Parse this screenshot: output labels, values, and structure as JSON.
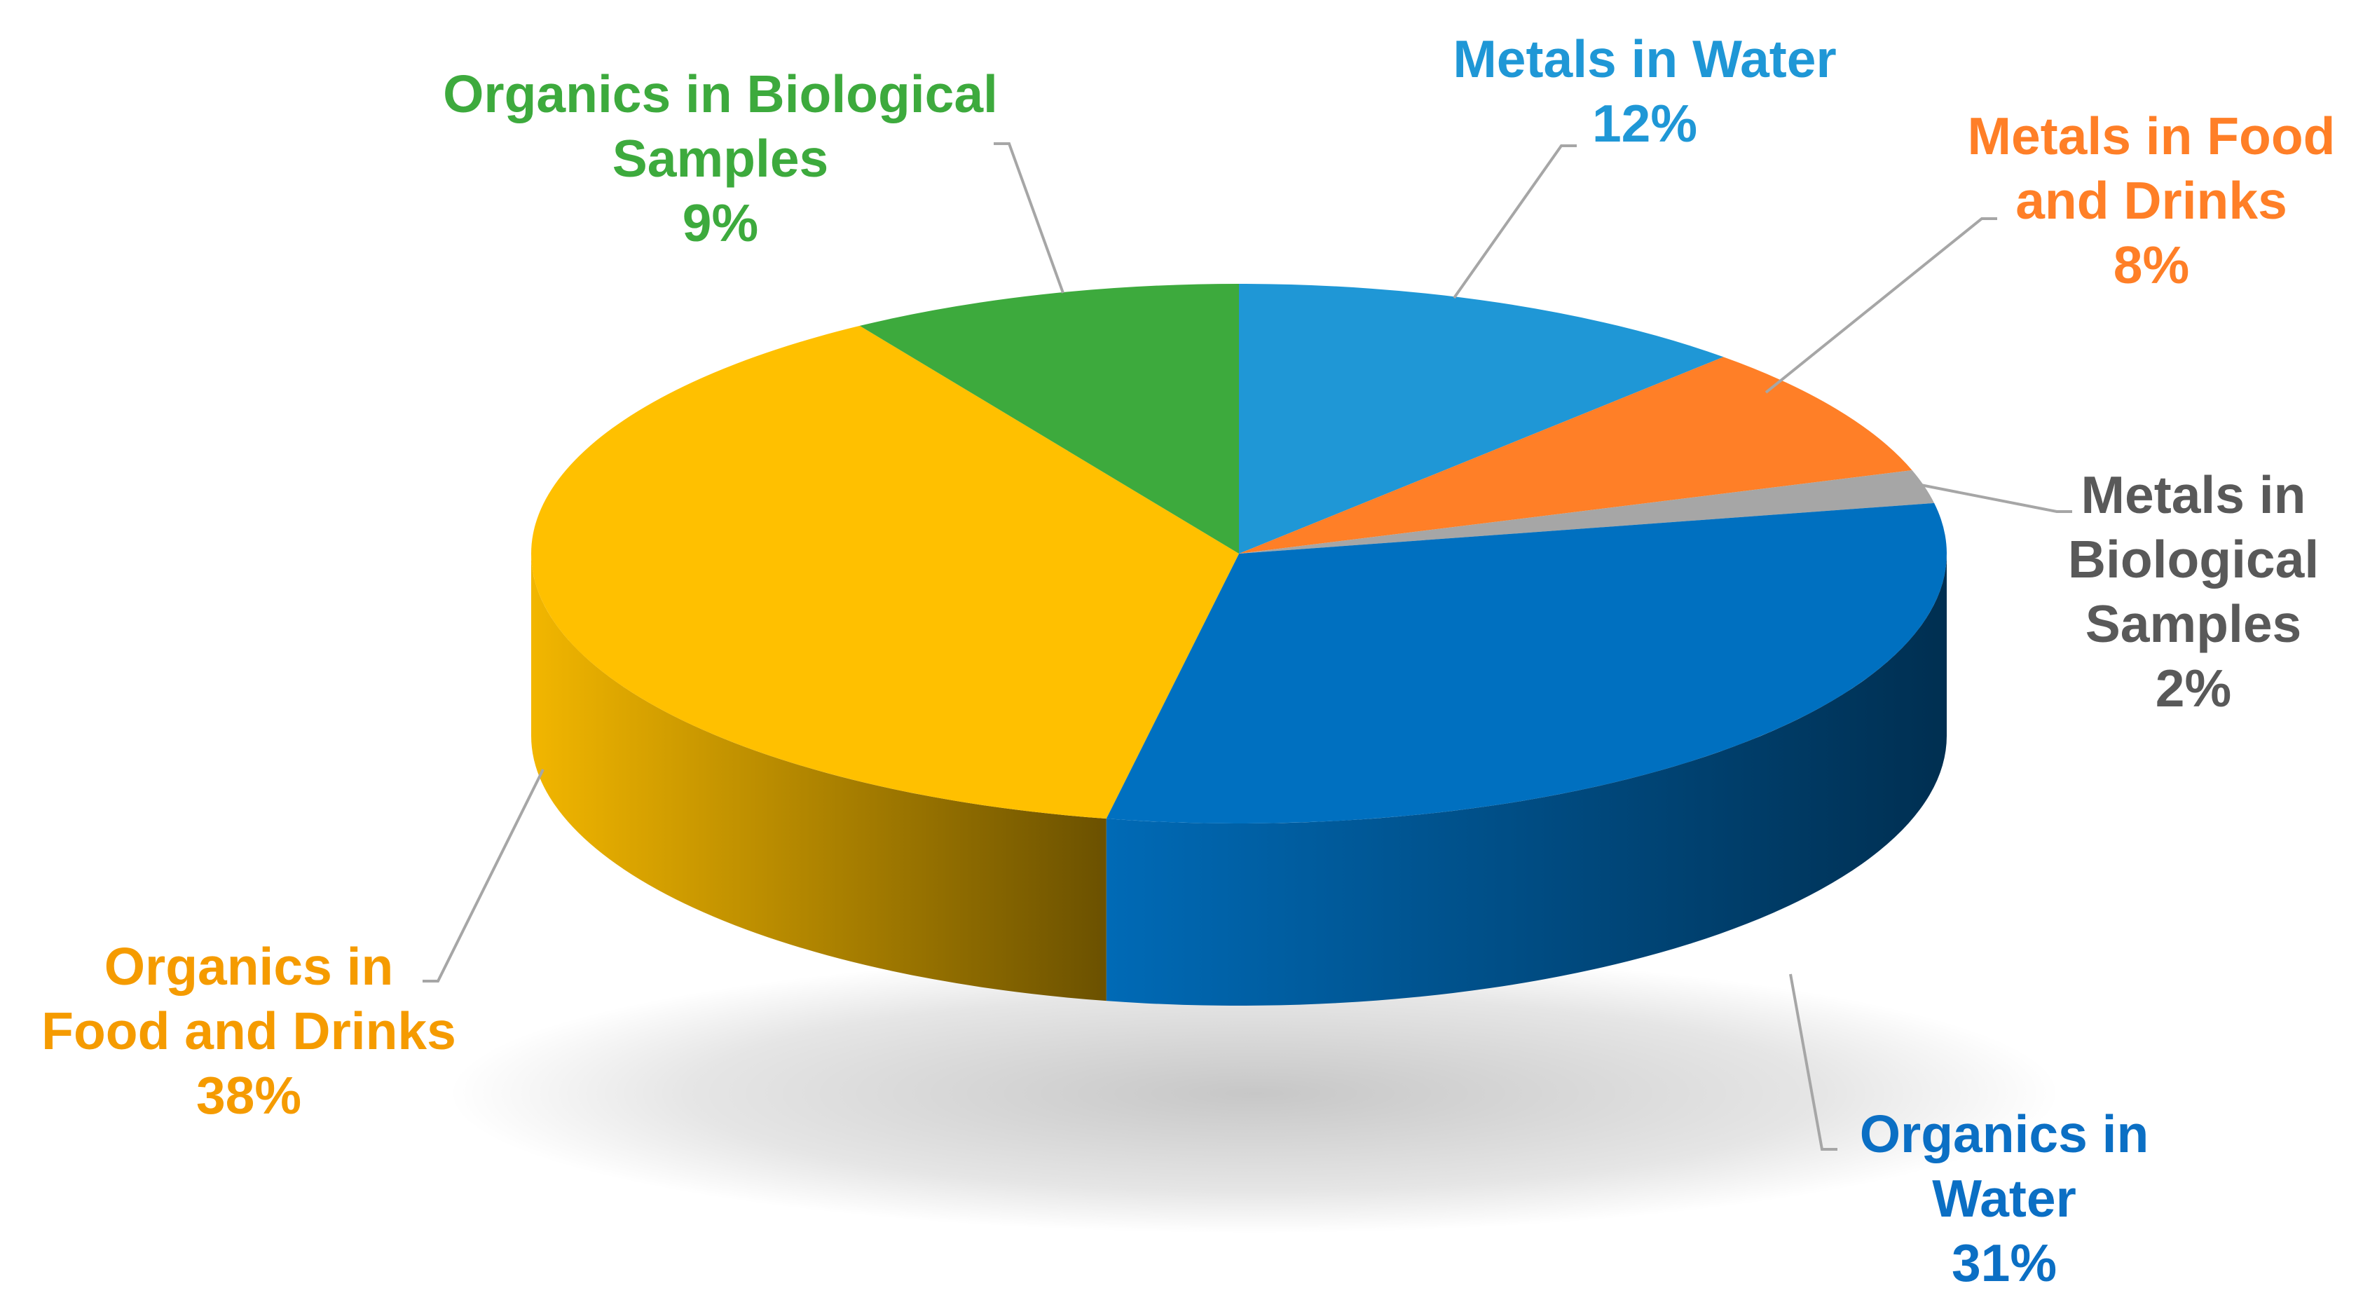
{
  "chart_data": {
    "type": "pie",
    "style": "3d-pie",
    "title": "",
    "slices": [
      {
        "label_lines": [
          "Metals in Water"
        ],
        "value": 12,
        "value_text": "12%",
        "color": "#1F97D6"
      },
      {
        "label_lines": [
          "Metals in Food",
          "and Drinks"
        ],
        "value": 8,
        "value_text": "8%",
        "color": "#FF7F27"
      },
      {
        "label_lines": [
          "Metals in",
          "Biological",
          "Samples"
        ],
        "value": 2,
        "value_text": "2%",
        "color": "#A6A6A6",
        "label_color": "#595959"
      },
      {
        "label_lines": [
          "Organics in",
          "Water"
        ],
        "value": 31,
        "value_text": "31%",
        "color": "#0070C0",
        "label_color": "#0B6FC4"
      },
      {
        "label_lines": [
          "Organics in",
          "Food and Drinks"
        ],
        "value": 38,
        "value_text": "38%",
        "color": "#FFC000",
        "label_color": "#F59B00"
      },
      {
        "label_lines": [
          "Organics in Biological",
          "Samples"
        ],
        "value": 9,
        "value_text": "9%",
        "color": "#3DAA3D",
        "label_color": "#3DAA3D"
      }
    ],
    "legend": "none",
    "data_labels": "outside-with-leader-lines"
  }
}
